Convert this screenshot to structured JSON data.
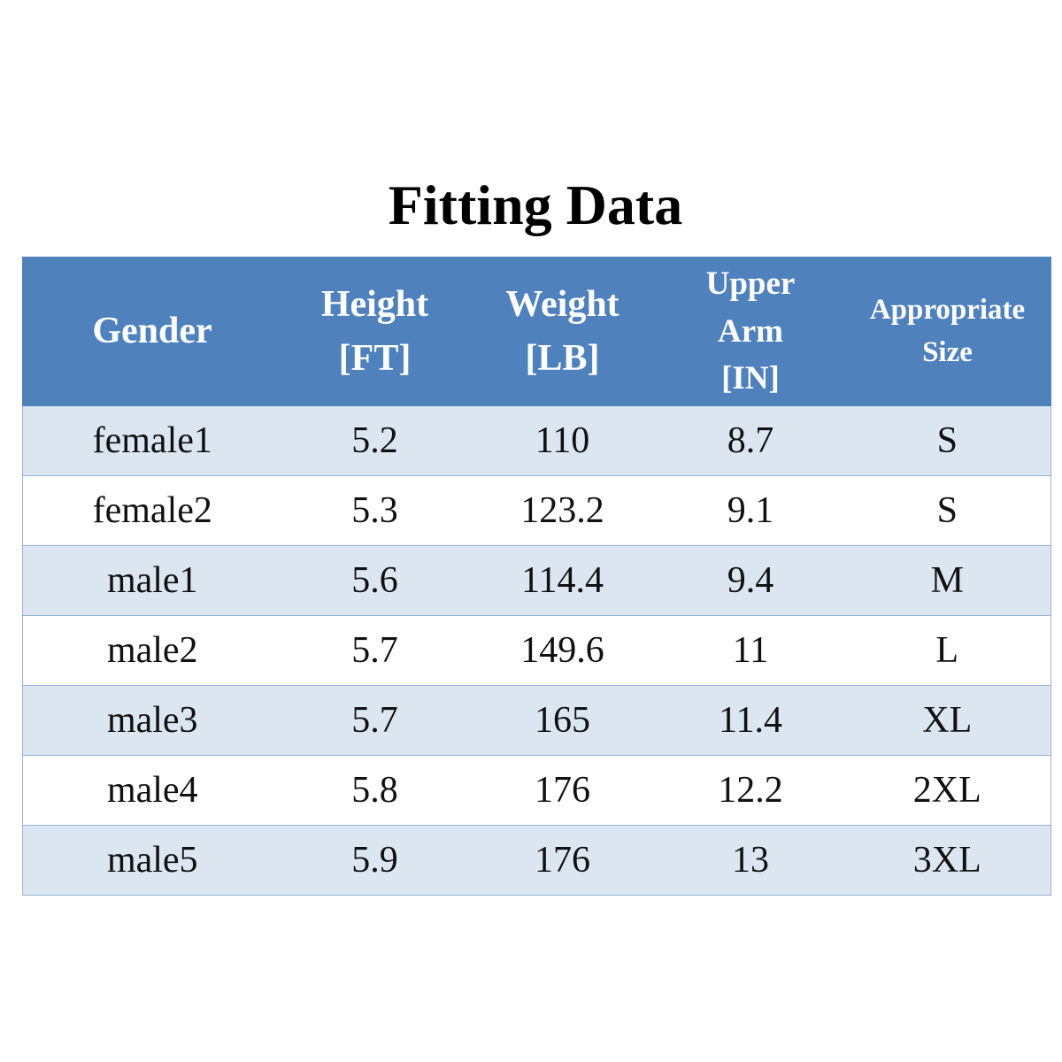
{
  "title": "Fitting Data",
  "table": {
    "header": [
      [
        "Gender"
      ],
      [
        "Height",
        "[FT]"
      ],
      [
        "Weight",
        "[LB]"
      ],
      [
        "Upper",
        "Arm",
        "[IN]"
      ],
      [
        "Appropriate",
        "Size"
      ]
    ],
    "rows": [
      [
        "female1",
        "5.2",
        "110",
        "8.7",
        "S"
      ],
      [
        "female2",
        "5.3",
        "123.2",
        "9.1",
        "S"
      ],
      [
        "male1",
        "5.6",
        "114.4",
        "9.4",
        "M"
      ],
      [
        "male2",
        "5.7",
        "149.6",
        "11",
        "L"
      ],
      [
        "male3",
        "5.7",
        "165",
        "11.4",
        "XL"
      ],
      [
        "male4",
        "5.8",
        "176",
        "12.2",
        "2XL"
      ],
      [
        "male5",
        "5.9",
        "176",
        "13",
        "3XL"
      ]
    ]
  }
}
